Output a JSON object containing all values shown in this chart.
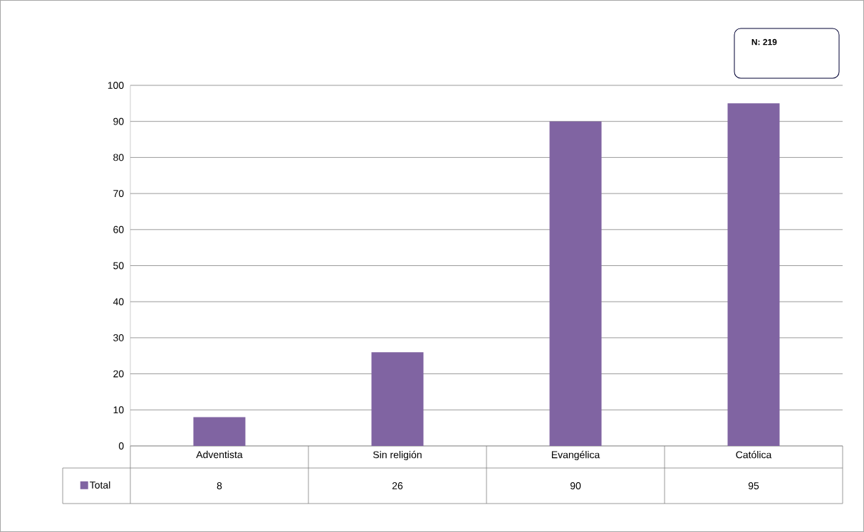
{
  "chart_data": {
    "type": "bar",
    "categories": [
      "Adventista",
      "Sin religión",
      "Evangélica",
      "Católica"
    ],
    "series": [
      {
        "name": "Total",
        "color": "#8064a2",
        "values": [
          8,
          26,
          90,
          95
        ]
      }
    ],
    "ylim": [
      0,
      100
    ],
    "yticks": [
      0,
      10,
      20,
      30,
      40,
      50,
      60,
      70,
      80,
      90,
      100
    ],
    "grid": "y",
    "legend": "bottom left",
    "data_labels": true,
    "annotations": [
      "N: 219"
    ]
  }
}
